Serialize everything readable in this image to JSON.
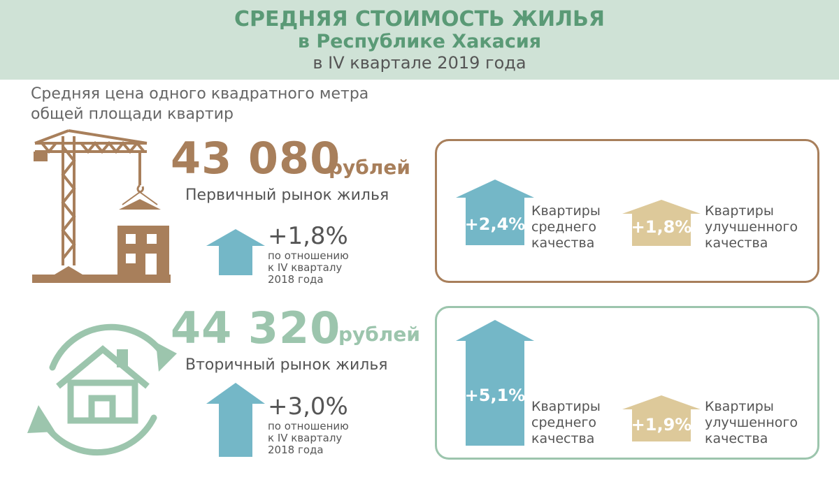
{
  "title": {
    "line1": "СРЕДНЯЯ СТОИМОСТЬ ЖИЛЬЯ",
    "line2": "в Республике Хакасия",
    "line3": "в IV квартале 2019 года"
  },
  "subtitle": {
    "line1": "Средняя цена одного квадратного метра",
    "line2": "общей площади квартир"
  },
  "primary": {
    "price": "43 080",
    "unit": "рублей",
    "market": "Первичный рынок жилья",
    "change": "+1,8%",
    "rel_line1": "по отношению",
    "rel_line2": "к IV кварталу",
    "rel_line3": "2018 года",
    "panel": {
      "medium_pct": "+2,4%",
      "medium_l1": "Квартиры",
      "medium_l2": "среднего",
      "medium_l3": "качества",
      "improved_pct": "+1,8%",
      "improved_l1": "Квартиры",
      "improved_l2": "улучшенного",
      "improved_l3": "качества"
    }
  },
  "secondary": {
    "price": "44 320",
    "unit": "рублей",
    "market": "Вторичный рынок жилья",
    "change": "+3,0%",
    "rel_line1": "по отношению",
    "rel_line2": "к IV кварталу",
    "rel_line3": "2018 года",
    "panel": {
      "medium_pct": "+5,1%",
      "medium_l1": "Квартиры",
      "medium_l2": "среднего",
      "medium_l3": "качества",
      "improved_pct": "+1,9%",
      "improved_l1": "Квартиры",
      "improved_l2": "улучшенного",
      "improved_l3": "качества"
    }
  },
  "colors": {
    "header_bg": "#cfe2d6",
    "title_green": "#5a9a76",
    "brown": "#a87f5b",
    "mint": "#9cc5ad",
    "blue_arrow": "#74b7c7",
    "tan_arrow": "#ddc99a"
  },
  "icons": {
    "primary": "crane-building-icon",
    "secondary": "house-cycle-icon"
  }
}
